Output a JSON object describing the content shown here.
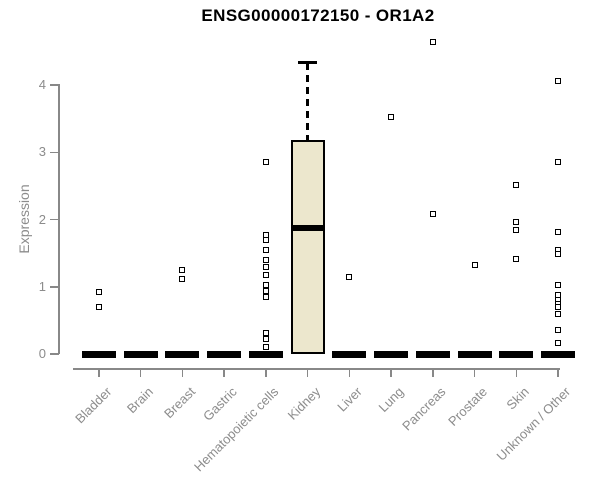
{
  "chart_data": {
    "type": "boxplot",
    "title": "ENSG00000172150 - OR1A2",
    "ylabel": "Expression",
    "xlabel": "",
    "ylim": [
      0,
      4.8
    ],
    "yticks": [
      0,
      1,
      2,
      3,
      4
    ],
    "grid": false,
    "legend": "none",
    "categories": [
      "Bladder",
      "Brain",
      "Breast",
      "Gastric",
      "Hematopoietic cells",
      "Kidney",
      "Liver",
      "Lung",
      "Pancreas",
      "Prostate",
      "Skin",
      "Unknown / Other"
    ],
    "boxes": [
      {
        "q1": 0,
        "median": 0,
        "q3": 0,
        "whisker_low": 0,
        "whisker_high": 0
      },
      {
        "q1": 0,
        "median": 0,
        "q3": 0,
        "whisker_low": 0,
        "whisker_high": 0
      },
      {
        "q1": 0,
        "median": 0,
        "q3": 0,
        "whisker_low": 0,
        "whisker_high": 0
      },
      {
        "q1": 0,
        "median": 0,
        "q3": 0,
        "whisker_low": 0,
        "whisker_high": 0
      },
      {
        "q1": 0,
        "median": 0,
        "q3": 0,
        "whisker_low": 0,
        "whisker_high": 0
      },
      {
        "q1": 0,
        "median": 1.88,
        "q3": 3.18,
        "whisker_low": 0,
        "whisker_high": 4.33
      },
      {
        "q1": 0,
        "median": 0,
        "q3": 0,
        "whisker_low": 0,
        "whisker_high": 0
      },
      {
        "q1": 0,
        "median": 0,
        "q3": 0,
        "whisker_low": 0,
        "whisker_high": 0
      },
      {
        "q1": 0,
        "median": 0,
        "q3": 0,
        "whisker_low": 0,
        "whisker_high": 0
      },
      {
        "q1": 0,
        "median": 0,
        "q3": 0,
        "whisker_low": 0,
        "whisker_high": 0
      },
      {
        "q1": 0,
        "median": 0,
        "q3": 0,
        "whisker_low": 0,
        "whisker_high": 0
      },
      {
        "q1": 0,
        "median": 0,
        "q3": 0,
        "whisker_low": 0,
        "whisker_high": 0
      }
    ],
    "points": [
      [
        0.92,
        0.7
      ],
      [],
      [
        1.25,
        1.12
      ],
      [],
      [
        2.86,
        1.77,
        1.69,
        1.55,
        1.4,
        1.29,
        1.18,
        1.03,
        0.94,
        0.85,
        0.31,
        0.22,
        0.1
      ],
      [],
      [
        1.15
      ],
      [
        3.52
      ],
      [
        4.64,
        2.09
      ],
      [
        1.33
      ],
      [
        2.51,
        1.96,
        1.85,
        1.41
      ],
      [
        4.06,
        2.86,
        1.82,
        1.55,
        1.49,
        1.03,
        0.88,
        0.81,
        0.74,
        0.7,
        0.6,
        0.36,
        0.16
      ]
    ]
  },
  "colors": {
    "background": "#ffffff",
    "title_text": "#000000",
    "axis_text": "#8c8c8c",
    "axis_line": "#888888",
    "box_fill": "#ece7cd",
    "box_line": "#000000",
    "point_line": "#000000"
  }
}
